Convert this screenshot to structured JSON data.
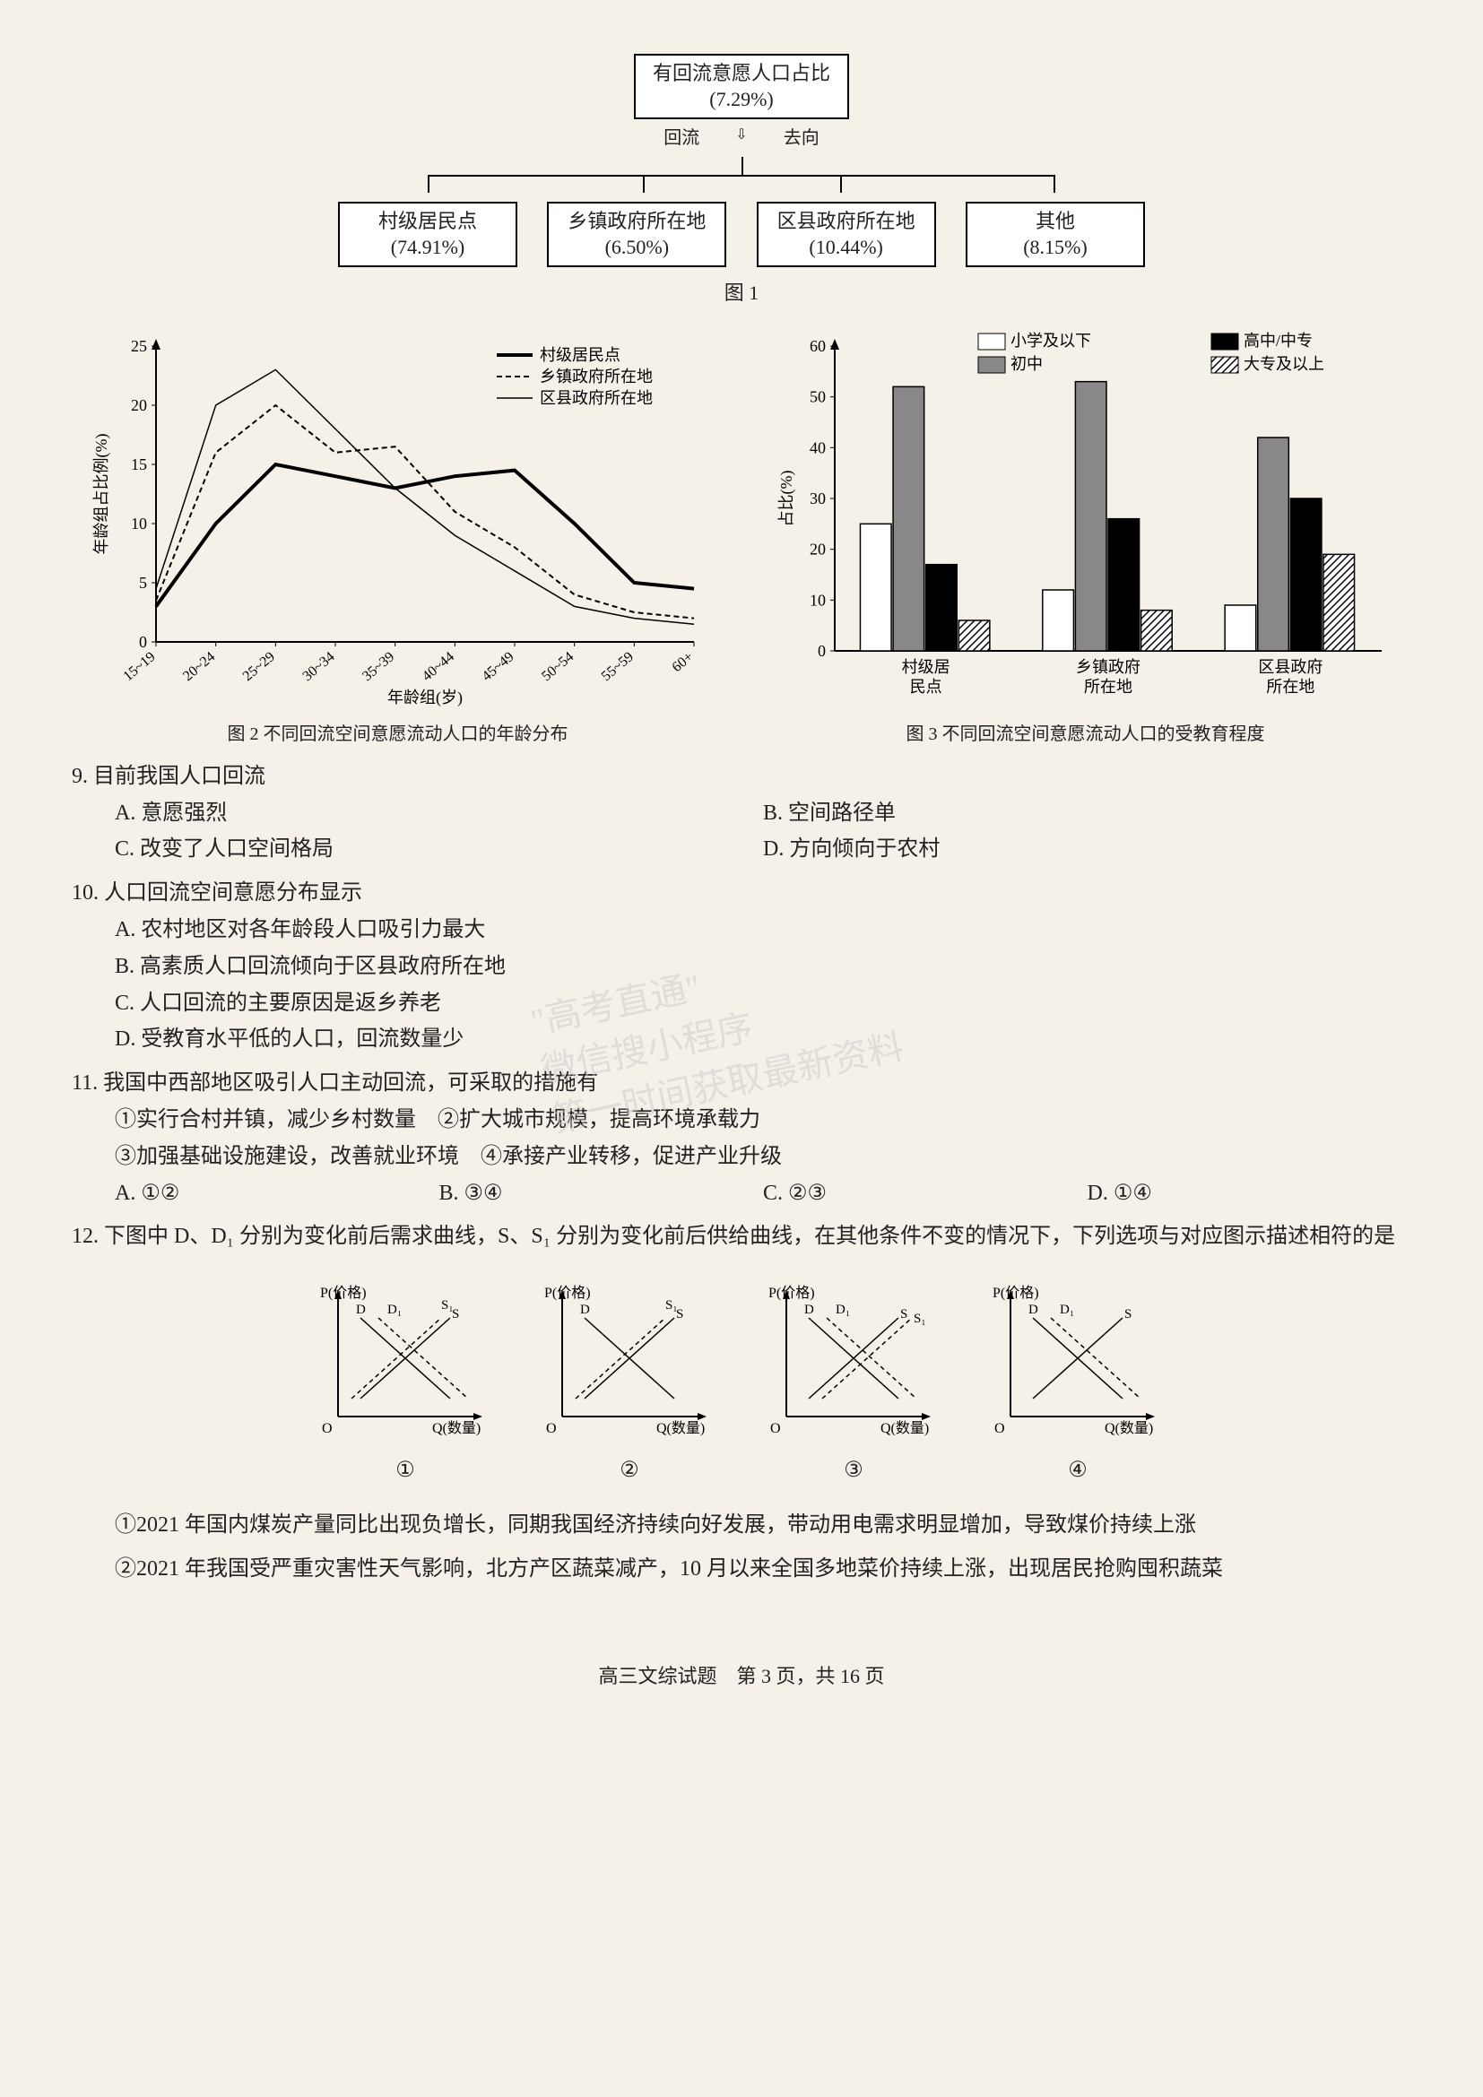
{
  "flowchart": {
    "top": {
      "line1": "有回流意愿人口占比",
      "line2": "(7.29%)"
    },
    "arrows": {
      "left": "回流",
      "right": "去向"
    },
    "nodes": [
      {
        "line1": "村级居民点",
        "line2": "(74.91%)"
      },
      {
        "line1": "乡镇政府所在地",
        "line2": "(6.50%)"
      },
      {
        "line1": "区县政府所在地",
        "line2": "(10.44%)"
      },
      {
        "line1": "其他",
        "line2": "(8.15%)"
      }
    ],
    "caption": "图 1"
  },
  "line_chart": {
    "type": "line",
    "ylabel": "年龄组占比例(%)",
    "xlabel": "年龄组(岁)",
    "ylim": [
      0,
      25
    ],
    "ytick_step": 5,
    "x_categories": [
      "15~19",
      "20~24",
      "25~29",
      "30~34",
      "35~39",
      "40~44",
      "45~49",
      "50~54",
      "55~59",
      "60+"
    ],
    "series": [
      {
        "name": "村级居民点",
        "style": "solid_thick",
        "color": "#000000",
        "values": [
          3,
          10,
          15,
          14,
          13,
          14,
          14.5,
          10,
          5,
          4.5
        ]
      },
      {
        "name": "乡镇政府所在地",
        "style": "dashed",
        "color": "#000000",
        "values": [
          3.5,
          16,
          20,
          16,
          16.5,
          11,
          8,
          4,
          2.5,
          2
        ]
      },
      {
        "name": "区县政府所在地",
        "style": "solid_thin",
        "color": "#000000",
        "values": [
          4.5,
          20,
          23,
          18,
          13,
          9,
          6,
          3,
          2,
          1.5
        ]
      }
    ],
    "legend_pos": "top-right",
    "caption": "图 2  不同回流空间意愿流动人口的年龄分布",
    "background_color": "#f5f0e8"
  },
  "bar_chart": {
    "type": "grouped_bar",
    "ylabel": "占比(%)",
    "ylim": [
      0,
      60
    ],
    "ytick_step": 10,
    "categories": [
      "村级居\n民点",
      "乡镇政府\n所在地",
      "区县政府\n所在地"
    ],
    "groups": [
      {
        "name": "小学及以下",
        "fill": "white",
        "pattern": "none",
        "values": [
          25,
          12,
          9
        ]
      },
      {
        "name": "初中",
        "fill": "#888888",
        "pattern": "none",
        "values": [
          52,
          53,
          42
        ]
      },
      {
        "name": "高中/中专",
        "fill": "#000000",
        "pattern": "none",
        "values": [
          17,
          26,
          30
        ]
      },
      {
        "name": "大专及以上",
        "fill": "white",
        "pattern": "hatch",
        "values": [
          6,
          8,
          19
        ]
      }
    ],
    "caption": "图 3  不同回流空间意愿流动人口的受教育程度",
    "background_color": "#f5f0e8"
  },
  "questions": [
    {
      "num": "9.",
      "stem": "目前我国人口回流",
      "options_layout": "2col",
      "options": [
        {
          "k": "A.",
          "t": "意愿强烈"
        },
        {
          "k": "B.",
          "t": "空间路径单"
        },
        {
          "k": "C.",
          "t": "改变了人口空间格局"
        },
        {
          "k": "D.",
          "t": "方向倾向于农村"
        }
      ]
    },
    {
      "num": "10.",
      "stem": "人口回流空间意愿分布显示",
      "options_layout": "1col",
      "options": [
        {
          "k": "A.",
          "t": "农村地区对各年龄段人口吸引力最大"
        },
        {
          "k": "B.",
          "t": "高素质人口回流倾向于区县政府所在地"
        },
        {
          "k": "C.",
          "t": "人口回流的主要原因是返乡养老"
        },
        {
          "k": "D.",
          "t": "受教育水平低的人口，回流数量少"
        }
      ]
    },
    {
      "num": "11.",
      "stem": "我国中西部地区吸引人口主动回流，可采取的措施有",
      "stems_extra": [
        "①实行合村并镇，减少乡村数量　②扩大城市规模，提高环境承载力",
        "③加强基础设施建设，改善就业环境　④承接产业转移，促进产业升级"
      ],
      "options_layout": "4col",
      "options": [
        {
          "k": "A.",
          "t": "①②"
        },
        {
          "k": "B.",
          "t": "③④"
        },
        {
          "k": "C.",
          "t": "②③"
        },
        {
          "k": "D.",
          "t": "①④"
        }
      ]
    },
    {
      "num": "12.",
      "stem": "下图中 D、D₁ 分别为变化前后需求曲线，S、S₁ 分别为变化前后供给曲线，在其他条件不变的情况下，下列选项与对应图示描述相符的是",
      "options_layout": "none"
    }
  ],
  "econ_charts": {
    "y_label": "P(价格)",
    "x_label": "Q(数量)",
    "charts": [
      {
        "num": "①",
        "curves": [
          "D",
          "D₁",
          "S₁",
          "S"
        ],
        "shift": "D_right_S_left"
      },
      {
        "num": "②",
        "curves": [
          "D",
          "S₁",
          "S"
        ],
        "shift": "S_left"
      },
      {
        "num": "③",
        "curves": [
          "D₁",
          "D",
          "S",
          "S₁"
        ],
        "shift": "D_right_S_right"
      },
      {
        "num": "④",
        "curves": [
          "D",
          "D₁",
          "S"
        ],
        "shift": "D_right"
      }
    ],
    "line_color": "#000000"
  },
  "passages": [
    "①2021 年国内煤炭产量同比出现负增长，同期我国经济持续向好发展，带动用电需求明显增加，导致煤价持续上涨",
    "②2021 年我国受严重灾害性天气影响，北方产区蔬菜减产，10 月以来全国多地菜价持续上涨，出现居民抢购囤积蔬菜"
  ],
  "footer": {
    "text": "高三文综试题　第 3 页，共 16 页"
  },
  "watermark": {
    "line1": "\"高考直通\"",
    "line2": "微信搜小程序",
    "line3": "第一时间获取最新资料"
  }
}
